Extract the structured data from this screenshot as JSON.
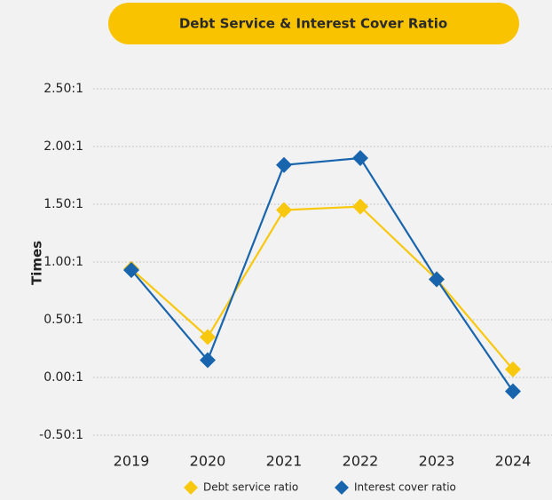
{
  "chart_data": {
    "type": "line",
    "title": "Debt Service & Interest Cover Ratio",
    "y_label": "Times",
    "categories": [
      "2019",
      "2020",
      "2021",
      "2022",
      "2023",
      "2024"
    ],
    "series": [
      {
        "name": "Debt service ratio",
        "color": "#f8c80f",
        "values": [
          0.94,
          0.35,
          1.45,
          1.48,
          0.85,
          0.07
        ]
      },
      {
        "name": "Interest cover ratio",
        "color": "#1864ad",
        "values": [
          0.93,
          0.15,
          1.84,
          1.9,
          0.85,
          -0.12
        ]
      }
    ],
    "ylim": [
      -0.5,
      2.5
    ],
    "yticks": [
      {
        "value": 2.5,
        "label": "2.50:1"
      },
      {
        "value": 2.0,
        "label": "2.00:1"
      },
      {
        "value": 1.5,
        "label": "1.50:1"
      },
      {
        "value": 1.0,
        "label": "1.00:1"
      },
      {
        "value": 0.5,
        "label": "0.50:1"
      },
      {
        "value": 0.0,
        "label": "0.00:1"
      },
      {
        "value": -0.5,
        "label": "-0.50:1"
      }
    ],
    "grid": true
  }
}
